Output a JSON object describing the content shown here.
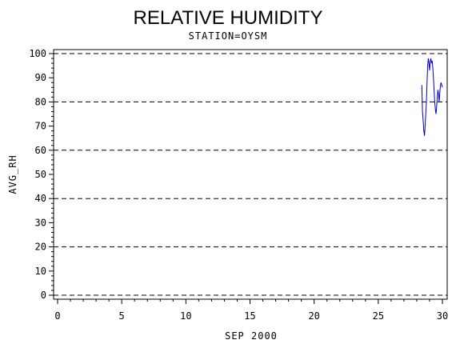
{
  "chart_data": {
    "type": "line",
    "title": "RELATIVE HUMIDITY",
    "subtitle": "STATION=OYSM",
    "xlabel": "SEP 2000",
    "ylabel": "AVG_RH",
    "xlim": [
      0,
      30
    ],
    "ylim": [
      0,
      100
    ],
    "x_ticks": [
      0,
      5,
      10,
      15,
      20,
      25,
      30
    ],
    "y_ticks": [
      0,
      10,
      20,
      30,
      40,
      50,
      60,
      70,
      80,
      90,
      100
    ],
    "grid_y": [
      0,
      20,
      40,
      60,
      80,
      100
    ],
    "grid": "horizontal dashed",
    "series": [
      {
        "color": "#0000cc",
        "x": [
          28.4,
          28.45,
          28.5,
          28.55,
          28.6,
          28.65,
          28.7,
          28.75,
          28.8,
          28.85,
          28.9,
          28.95,
          29.0,
          29.05,
          29.1,
          29.15,
          29.2,
          29.25,
          29.3,
          29.35,
          29.4,
          29.45,
          29.5,
          29.55,
          29.6,
          29.65,
          29.7,
          29.75,
          29.8,
          29.85,
          29.9,
          29.95,
          30.0
        ],
        "values": [
          87,
          76,
          72,
          68,
          66,
          70,
          75,
          80,
          88,
          95,
          98,
          96,
          93,
          97,
          98,
          96,
          97,
          94,
          90,
          85,
          80,
          77,
          75,
          78,
          82,
          85,
          83,
          80,
          84,
          87,
          88,
          87,
          86
        ]
      }
    ]
  }
}
